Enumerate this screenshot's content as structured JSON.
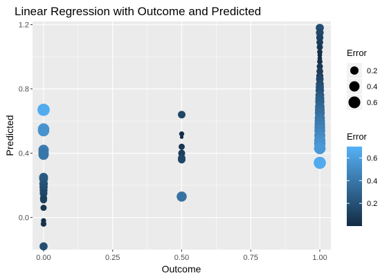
{
  "chart_data": {
    "type": "scatter",
    "title": "Linear Regression with Outcome and Predicted",
    "xlabel": "Outcome",
    "ylabel": "Predicted",
    "xlim": [
      -0.04,
      1.04
    ],
    "ylim": [
      -0.2,
      1.22
    ],
    "x_ticks": [
      0.0,
      0.25,
      0.5,
      0.75,
      1.0
    ],
    "x_tick_labels": [
      "0.00",
      "0.25",
      "0.50",
      "0.75",
      "1.00"
    ],
    "y_ticks": [
      0.0,
      0.4,
      0.8,
      1.2
    ],
    "y_tick_labels": [
      "0.0",
      "0.4",
      "0.8",
      "1.2"
    ],
    "grid": true,
    "legend_placement": "right",
    "size_legend": {
      "title": "Error",
      "values": [
        0.2,
        0.4,
        0.6
      ],
      "labels": [
        "0.2",
        "0.4",
        "0.6"
      ]
    },
    "color_legend": {
      "title": "Error",
      "values": [
        0.2,
        0.4,
        0.6
      ],
      "labels": [
        "0.2",
        "0.4",
        "0.6"
      ],
      "range": [
        0.0,
        0.7
      ],
      "low_color": "#132B43",
      "high_color": "#56B1F7"
    },
    "points": [
      {
        "x": 0,
        "y": 0.67
      },
      {
        "x": 0,
        "y": 0.55
      },
      {
        "x": 0,
        "y": 0.54
      },
      {
        "x": 0,
        "y": 0.42
      },
      {
        "x": 0,
        "y": 0.4
      },
      {
        "x": 0,
        "y": 0.39
      },
      {
        "x": 0,
        "y": 0.25
      },
      {
        "x": 0,
        "y": 0.24
      },
      {
        "x": 0,
        "y": 0.21
      },
      {
        "x": 0,
        "y": 0.19
      },
      {
        "x": 0,
        "y": 0.17
      },
      {
        "x": 0,
        "y": 0.15
      },
      {
        "x": 0,
        "y": 0.12
      },
      {
        "x": 0,
        "y": 0.11
      },
      {
        "x": 0,
        "y": 0.06
      },
      {
        "x": 0,
        "y": -0.02
      },
      {
        "x": 0,
        "y": -0.04
      },
      {
        "x": 0,
        "y": -0.18
      },
      {
        "x": 0.5,
        "y": 0.64
      },
      {
        "x": 0.5,
        "y": 0.52
      },
      {
        "x": 0.5,
        "y": 0.5
      },
      {
        "x": 0.5,
        "y": 0.44
      },
      {
        "x": 0.5,
        "y": 0.4
      },
      {
        "x": 0.5,
        "y": 0.37
      },
      {
        "x": 0.5,
        "y": 0.36
      },
      {
        "x": 0.5,
        "y": 0.13
      },
      {
        "x": 1,
        "y": 1.18
      },
      {
        "x": 1,
        "y": 1.15
      },
      {
        "x": 1,
        "y": 1.12
      },
      {
        "x": 1,
        "y": 1.09
      },
      {
        "x": 1,
        "y": 1.06
      },
      {
        "x": 1,
        "y": 1.03
      },
      {
        "x": 1,
        "y": 1.01
      },
      {
        "x": 1,
        "y": 0.99
      },
      {
        "x": 1,
        "y": 0.97
      },
      {
        "x": 1,
        "y": 0.94
      },
      {
        "x": 1,
        "y": 0.91
      },
      {
        "x": 1,
        "y": 0.88
      },
      {
        "x": 1,
        "y": 0.86
      },
      {
        "x": 1,
        "y": 0.83
      },
      {
        "x": 1,
        "y": 0.81
      },
      {
        "x": 1,
        "y": 0.79
      },
      {
        "x": 1,
        "y": 0.76
      },
      {
        "x": 1,
        "y": 0.74
      },
      {
        "x": 1,
        "y": 0.72
      },
      {
        "x": 1,
        "y": 0.69
      },
      {
        "x": 1,
        "y": 0.67
      },
      {
        "x": 1,
        "y": 0.65
      },
      {
        "x": 1,
        "y": 0.62
      },
      {
        "x": 1,
        "y": 0.6
      },
      {
        "x": 1,
        "y": 0.58
      },
      {
        "x": 1,
        "y": 0.56
      },
      {
        "x": 1,
        "y": 0.54
      },
      {
        "x": 1,
        "y": 0.51
      },
      {
        "x": 1,
        "y": 0.48
      },
      {
        "x": 1,
        "y": 0.46
      },
      {
        "x": 1,
        "y": 0.43
      },
      {
        "x": 1,
        "y": 0.34
      }
    ]
  }
}
